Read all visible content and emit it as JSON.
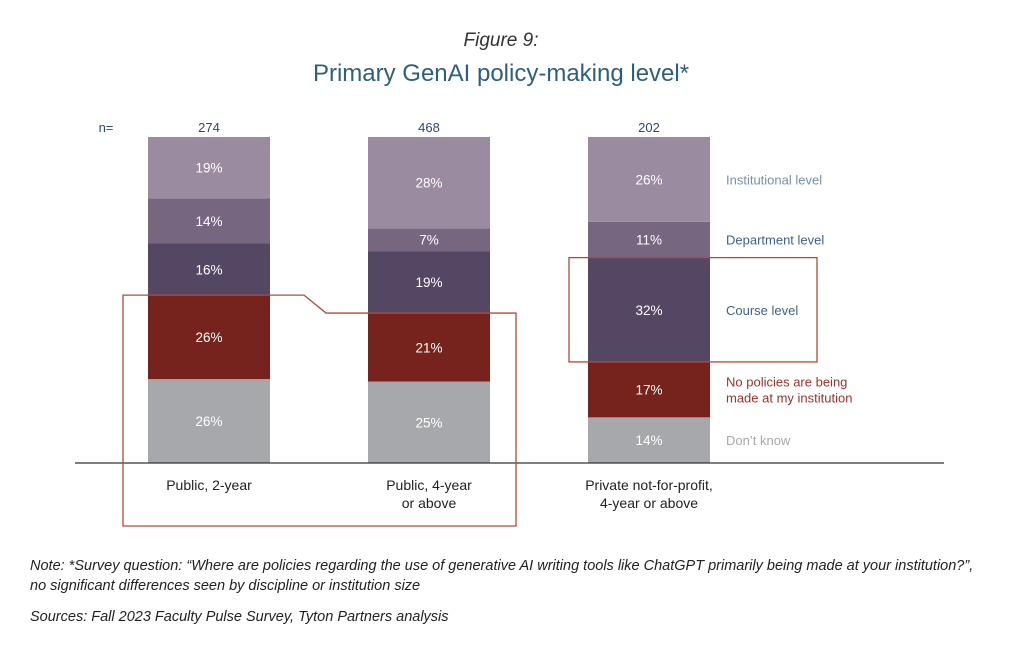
{
  "figure_label": "Figure 9:",
  "title": "Primary GenAI policy-making level*",
  "note": "Note: *Survey question: “Where are policies regarding the use of generative AI writing tools like ChatGPT primarily being made at your institution?”, no significant differences seen by discipline or institution size",
  "sources": "Sources: Fall 2023 Faculty Pulse Survey, Tyton Partners analysis",
  "chart_data": {
    "type": "bar",
    "stacked": true,
    "unit": "%",
    "n_label": "n=",
    "categories": [
      [
        "Public, 2-year"
      ],
      [
        "Public, 4-year",
        "or above"
      ],
      [
        "Private not-for-profit,",
        "4-year or above"
      ]
    ],
    "n": [
      "274",
      "468",
      "202"
    ],
    "series": [
      {
        "name": "Don’t know",
        "values": [
          26,
          25,
          14
        ],
        "color": "#a7a8ac",
        "label_color": "#a7a8ac"
      },
      {
        "name": "No policies are being made at my institution",
        "legend_lines": [
          "No policies are being",
          "made at my institution"
        ],
        "values": [
          26,
          21,
          17
        ],
        "color": "#76231e",
        "label_color": "#9b3328"
      },
      {
        "name": "Course level",
        "values": [
          16,
          19,
          32
        ],
        "color": "#544763",
        "label_color": "#3e6387"
      },
      {
        "name": "Department level",
        "values": [
          14,
          7,
          11
        ],
        "color": "#76667f",
        "label_color": "#3e6387"
      },
      {
        "name": "Institutional level",
        "values": [
          19,
          28,
          26
        ],
        "color": "#9b8ba1",
        "label_color": "#7b8fa8"
      }
    ],
    "highlight_color": "#b04a3a",
    "legend_position": "right"
  }
}
